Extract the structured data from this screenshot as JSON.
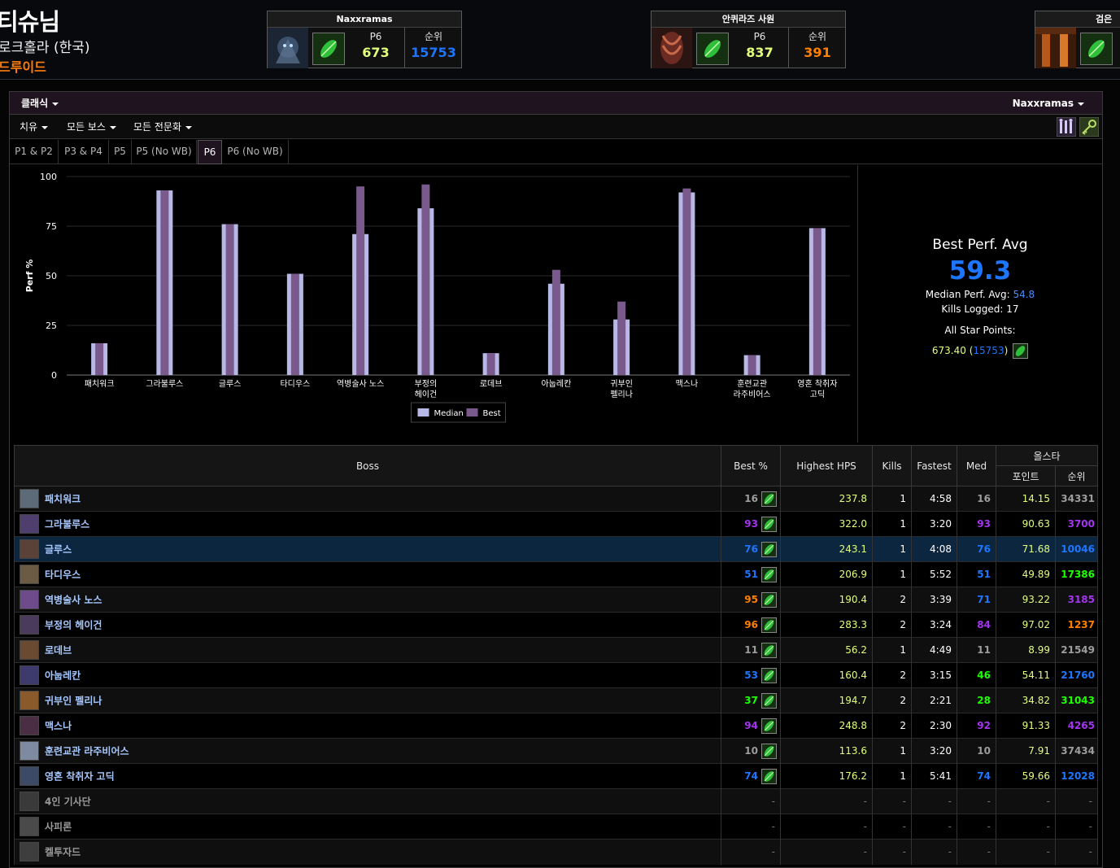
{
  "character": {
    "name": "티슈님",
    "server": "로크홀라 (한국)",
    "class": "드루이드"
  },
  "zones": [
    {
      "title": "Naxxramas",
      "phase_label": "P6",
      "phase_value": "673",
      "rank_label": "순위",
      "rank_value": "15753",
      "rank_color": "#1e76ff",
      "value_color": "#e1ff7d"
    },
    {
      "title": "안퀴라즈 사원",
      "phase_label": "P6",
      "phase_value": "837",
      "rank_label": "순위",
      "rank_value": "391",
      "rank_color": "#ff8000",
      "value_color": "#e1ff7d"
    },
    {
      "title": "검은"
    }
  ],
  "toolbar": {
    "classic": "클래식",
    "zone": "Naxxramas"
  },
  "filters": {
    "role": "치유",
    "bosses": "모든 보스",
    "specs": "모든 전문화"
  },
  "tabs": [
    "P1 & P2",
    "P3 & P4",
    "P5",
    "P5 (No WB)",
    "P6",
    "P6 (No WB)"
  ],
  "active_tab": "P6",
  "summary": {
    "title": "Best Perf. Avg",
    "best_avg": "59.3",
    "median_label": "Median Perf. Avg:",
    "median_value": "54.8",
    "kills_label": "Kills Logged:",
    "kills_value": "17",
    "star_label": "All Star Points:",
    "star_points": "673.40",
    "star_rank": "15753"
  },
  "chart_data": {
    "type": "bar",
    "ylabel": "Perf %",
    "ylim": [
      0,
      100
    ],
    "yticks": [
      0,
      25,
      50,
      75,
      100
    ],
    "categories": [
      "패치워크",
      "그라불루스",
      "글루스",
      "타디우스",
      "역병술사 노스",
      "부정의\n헤이건",
      "로데브",
      "아눕레칸",
      "귀부인\n펠리나",
      "맥스나",
      "훈련교관\n라주비어스",
      "영혼 착취자\n고딕"
    ],
    "series": [
      {
        "name": "Median",
        "color": "#b8b8e6",
        "values": [
          16,
          93,
          76,
          51,
          71,
          84,
          11,
          46,
          28,
          92,
          10,
          74
        ]
      },
      {
        "name": "Best",
        "color": "#7a5a8c",
        "values": [
          16,
          93,
          76,
          51,
          95,
          96,
          11,
          53,
          37,
          94,
          10,
          74
        ]
      }
    ]
  },
  "table": {
    "headers": {
      "boss": "Boss",
      "best": "Best %",
      "hps": "Highest HPS",
      "kills": "Kills",
      "fastest": "Fastest",
      "med": "Med",
      "allstar": "올스타",
      "points": "포인트",
      "rank": "순위"
    },
    "rows": [
      {
        "boss": "패치워크",
        "best": "16",
        "best_color": "#9d9d9d",
        "hps": "237.8",
        "kills": "1",
        "fastest": "4:58",
        "med": "16",
        "med_color": "#9d9d9d",
        "points": "14.15",
        "rank": "34331",
        "rank_color": "#9d9d9d",
        "icon": "#5d6a78"
      },
      {
        "boss": "그라불루스",
        "best": "93",
        "best_color": "#a335ee",
        "hps": "322.0",
        "kills": "1",
        "fastest": "3:20",
        "med": "93",
        "med_color": "#a335ee",
        "points": "90.63",
        "rank": "3700",
        "rank_color": "#a335ee",
        "icon": "#4f3f6e"
      },
      {
        "boss": "글루스",
        "best": "76",
        "best_color": "#1e76ff",
        "hps": "243.1",
        "kills": "1",
        "fastest": "4:08",
        "med": "76",
        "med_color": "#1e76ff",
        "points": "71.68",
        "rank": "10046",
        "rank_color": "#1e76ff",
        "icon": "#5a4238",
        "highlight": true
      },
      {
        "boss": "타디우스",
        "best": "51",
        "best_color": "#1e76ff",
        "hps": "206.9",
        "kills": "1",
        "fastest": "5:52",
        "med": "51",
        "med_color": "#1e76ff",
        "points": "49.89",
        "rank": "17386",
        "rank_color": "#1eff00",
        "icon": "#6b5b44"
      },
      {
        "boss": "역병술사 노스",
        "best": "95",
        "best_color": "#ff8000",
        "hps": "190.4",
        "kills": "2",
        "fastest": "3:39",
        "med": "71",
        "med_color": "#1e76ff",
        "points": "93.22",
        "rank": "3185",
        "rank_color": "#a335ee",
        "icon": "#6e4b8a"
      },
      {
        "boss": "부정의 헤이건",
        "best": "96",
        "best_color": "#ff8000",
        "hps": "283.3",
        "kills": "2",
        "fastest": "3:24",
        "med": "84",
        "med_color": "#a335ee",
        "points": "97.02",
        "rank": "1237",
        "rank_color": "#ff8000",
        "icon": "#4a3a5c"
      },
      {
        "boss": "로데브",
        "best": "11",
        "best_color": "#9d9d9d",
        "hps": "56.2",
        "kills": "1",
        "fastest": "4:49",
        "med": "11",
        "med_color": "#9d9d9d",
        "points": "8.99",
        "rank": "21549",
        "rank_color": "#9d9d9d",
        "icon": "#6a4a30"
      },
      {
        "boss": "아눕레칸",
        "best": "53",
        "best_color": "#1e76ff",
        "hps": "160.4",
        "kills": "2",
        "fastest": "3:15",
        "med": "46",
        "med_color": "#1eff00",
        "points": "54.11",
        "rank": "21760",
        "rank_color": "#1e76ff",
        "icon": "#3d3a6e"
      },
      {
        "boss": "귀부인 펠리나",
        "best": "37",
        "best_color": "#1eff00",
        "hps": "194.7",
        "kills": "2",
        "fastest": "2:21",
        "med": "28",
        "med_color": "#1eff00",
        "points": "34.82",
        "rank": "31043",
        "rank_color": "#1eff00",
        "icon": "#8a5a2a"
      },
      {
        "boss": "맥스나",
        "best": "94",
        "best_color": "#a335ee",
        "hps": "248.8",
        "kills": "2",
        "fastest": "2:30",
        "med": "92",
        "med_color": "#a335ee",
        "points": "91.33",
        "rank": "4265",
        "rank_color": "#a335ee",
        "icon": "#4a2e44"
      },
      {
        "boss": "훈련교관 라주비어스",
        "best": "10",
        "best_color": "#9d9d9d",
        "hps": "113.6",
        "kills": "1",
        "fastest": "3:20",
        "med": "10",
        "med_color": "#9d9d9d",
        "points": "7.91",
        "rank": "37434",
        "rank_color": "#9d9d9d",
        "icon": "#7d8aa0"
      },
      {
        "boss": "영혼 착취자 고딕",
        "best": "74",
        "best_color": "#1e76ff",
        "hps": "176.2",
        "kills": "1",
        "fastest": "5:41",
        "med": "74",
        "med_color": "#1e76ff",
        "points": "59.66",
        "rank": "12028",
        "rank_color": "#1e76ff",
        "icon": "#3c4a66"
      },
      {
        "boss": "4인 기사단",
        "empty": true,
        "icon": "#3a3a3a"
      },
      {
        "boss": "사피론",
        "empty": true,
        "icon": "#4a4a4a"
      },
      {
        "boss": "켈투자드",
        "empty": true,
        "icon": "#3e3e3e"
      }
    ],
    "empty_mark": "-"
  },
  "icons": {
    "spec": "restoration-leaf-icon",
    "raid_tools": "raid-roster-icon",
    "key": "key-icon"
  }
}
